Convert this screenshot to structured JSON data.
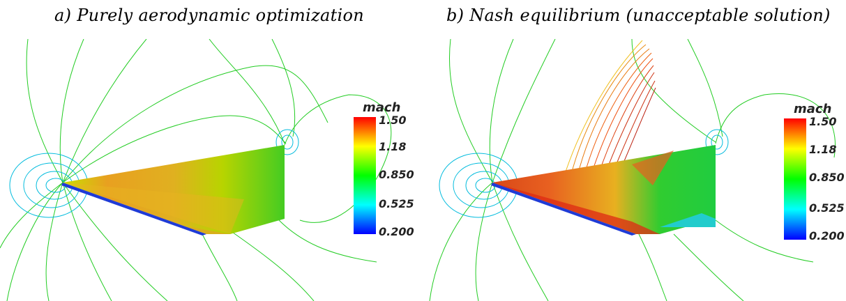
{
  "captions": {
    "a": "a) Purely aerodynamic optimization",
    "b": "b) Nash equilibrium (unacceptable solution)"
  },
  "colorbar": {
    "title": "mach",
    "ticks": [
      "1.50",
      "1.18",
      "0.850",
      "0.525",
      "0.200"
    ],
    "stops": [
      "#ff0000",
      "#ffff00",
      "#00ff00",
      "#00ffff",
      "#0000ff"
    ]
  },
  "contour_color": "#22cc22"
}
